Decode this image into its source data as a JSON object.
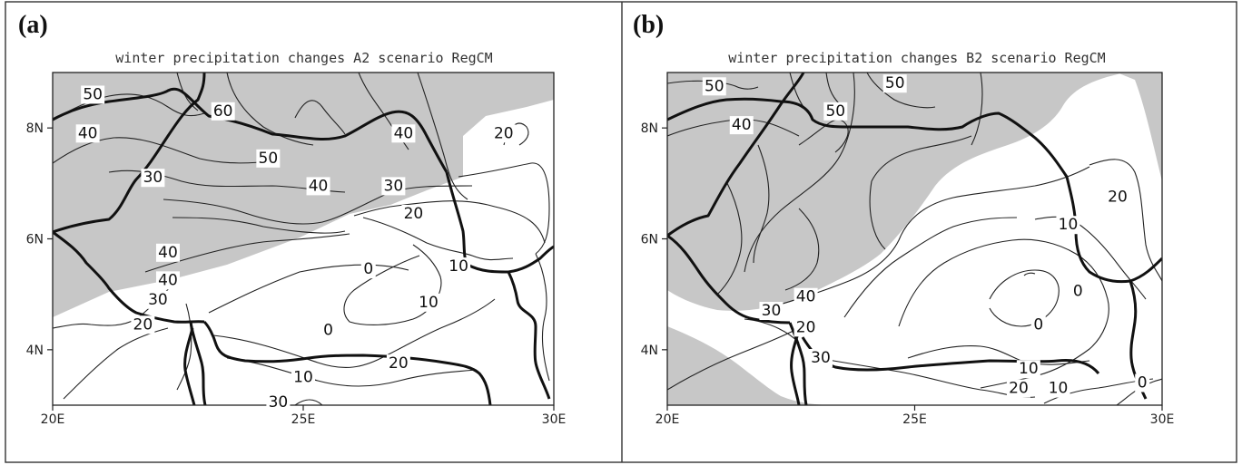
{
  "figure": {
    "panels": [
      {
        "id": "a",
        "label": "(a)",
        "title": "winter precipitation changes A2 scenario RegCM",
        "lon_ticks": [
          "20E",
          "25E",
          "30E"
        ],
        "lat_ticks": [
          "8N",
          "6N",
          "4N"
        ],
        "contour_labels": [
          {
            "text": "50",
            "lon": 20.8,
            "lat": 8.6
          },
          {
            "text": "60",
            "lon": 23.4,
            "lat": 8.3
          },
          {
            "text": "40",
            "lon": 20.7,
            "lat": 7.9
          },
          {
            "text": "40",
            "lon": 27.0,
            "lat": 7.9
          },
          {
            "text": "50",
            "lon": 24.3,
            "lat": 7.45
          },
          {
            "text": "30",
            "lon": 22.0,
            "lat": 7.1
          },
          {
            "text": "40",
            "lon": 25.3,
            "lat": 6.95
          },
          {
            "text": "30",
            "lon": 26.8,
            "lat": 6.95
          },
          {
            "text": "20",
            "lon": 29.0,
            "lat": 7.9
          },
          {
            "text": "20",
            "lon": 27.2,
            "lat": 6.45
          },
          {
            "text": "40",
            "lon": 22.3,
            "lat": 5.75
          },
          {
            "text": "40",
            "lon": 22.3,
            "lat": 5.25
          },
          {
            "text": "30",
            "lon": 22.1,
            "lat": 4.9
          },
          {
            "text": "10",
            "lon": 28.1,
            "lat": 5.5
          },
          {
            "text": "0",
            "lon": 26.3,
            "lat": 5.45
          },
          {
            "text": "10",
            "lon": 27.5,
            "lat": 4.85
          },
          {
            "text": "20",
            "lon": 21.8,
            "lat": 4.45
          },
          {
            "text": "0",
            "lon": 25.5,
            "lat": 4.35
          },
          {
            "text": "20",
            "lon": 26.9,
            "lat": 3.75
          },
          {
            "text": "10",
            "lon": 25.0,
            "lat": 3.5
          },
          {
            "text": "30",
            "lon": 24.5,
            "lat": 3.05
          }
        ]
      },
      {
        "id": "b",
        "label": "(b)",
        "title": "winter precipitation changes B2 scenario RegCM",
        "lon_ticks": [
          "20E",
          "25E",
          "30E"
        ],
        "lat_ticks": [
          "8N",
          "6N",
          "4N"
        ],
        "contour_labels": [
          {
            "text": "50",
            "lon": 20.95,
            "lat": 8.75
          },
          {
            "text": "50",
            "lon": 24.6,
            "lat": 8.8
          },
          {
            "text": "40",
            "lon": 21.5,
            "lat": 8.05
          },
          {
            "text": "50",
            "lon": 23.4,
            "lat": 8.3
          },
          {
            "text": "20",
            "lon": 29.1,
            "lat": 6.75
          },
          {
            "text": "10",
            "lon": 28.1,
            "lat": 6.25
          },
          {
            "text": "40",
            "lon": 22.8,
            "lat": 4.95
          },
          {
            "text": "0",
            "lon": 28.3,
            "lat": 5.05
          },
          {
            "text": "30",
            "lon": 22.1,
            "lat": 4.7
          },
          {
            "text": "0",
            "lon": 27.5,
            "lat": 4.45
          },
          {
            "text": "20",
            "lon": 22.8,
            "lat": 4.4
          },
          {
            "text": "30",
            "lon": 23.1,
            "lat": 3.85
          },
          {
            "text": "10",
            "lon": 27.3,
            "lat": 3.65
          },
          {
            "text": "20",
            "lon": 27.1,
            "lat": 3.3
          },
          {
            "text": "10",
            "lon": 27.9,
            "lat": 3.3
          },
          {
            "text": "0",
            "lon": 29.6,
            "lat": 3.4
          }
        ]
      }
    ]
  }
}
